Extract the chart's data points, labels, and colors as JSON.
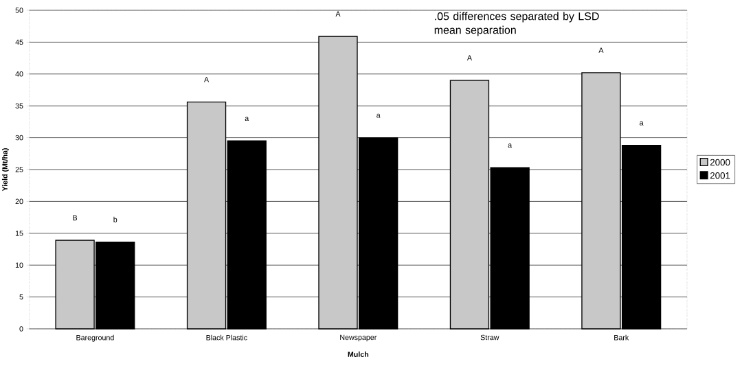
{
  "chart_data": {
    "type": "bar",
    "xlabel": "Mulch",
    "ylabel": "Yield (Mt/ha)",
    "categories": [
      "Bareground",
      "Black Plastic",
      "Newspaper",
      "Straw",
      "Bark"
    ],
    "series": [
      {
        "name": "2000",
        "color": "#c8c8c8",
        "values": [
          13.9,
          35.6,
          45.9,
          39.0,
          40.2
        ],
        "value_labels": [
          "B",
          "A",
          "A",
          "A",
          "A"
        ]
      },
      {
        "name": "2001",
        "color": "#000000",
        "values": [
          13.6,
          29.5,
          30.0,
          25.3,
          28.8
        ],
        "value_labels": [
          "b",
          "a",
          "a",
          "a",
          "a"
        ]
      }
    ],
    "ylim": [
      0,
      50
    ],
    "yticks": [
      0,
      5,
      10,
      15,
      20,
      25,
      30,
      35,
      40,
      45,
      50
    ],
    "grid": "y",
    "legend": "right",
    "annotations": [
      ".05 differences separated by LSD mean separation"
    ]
  }
}
